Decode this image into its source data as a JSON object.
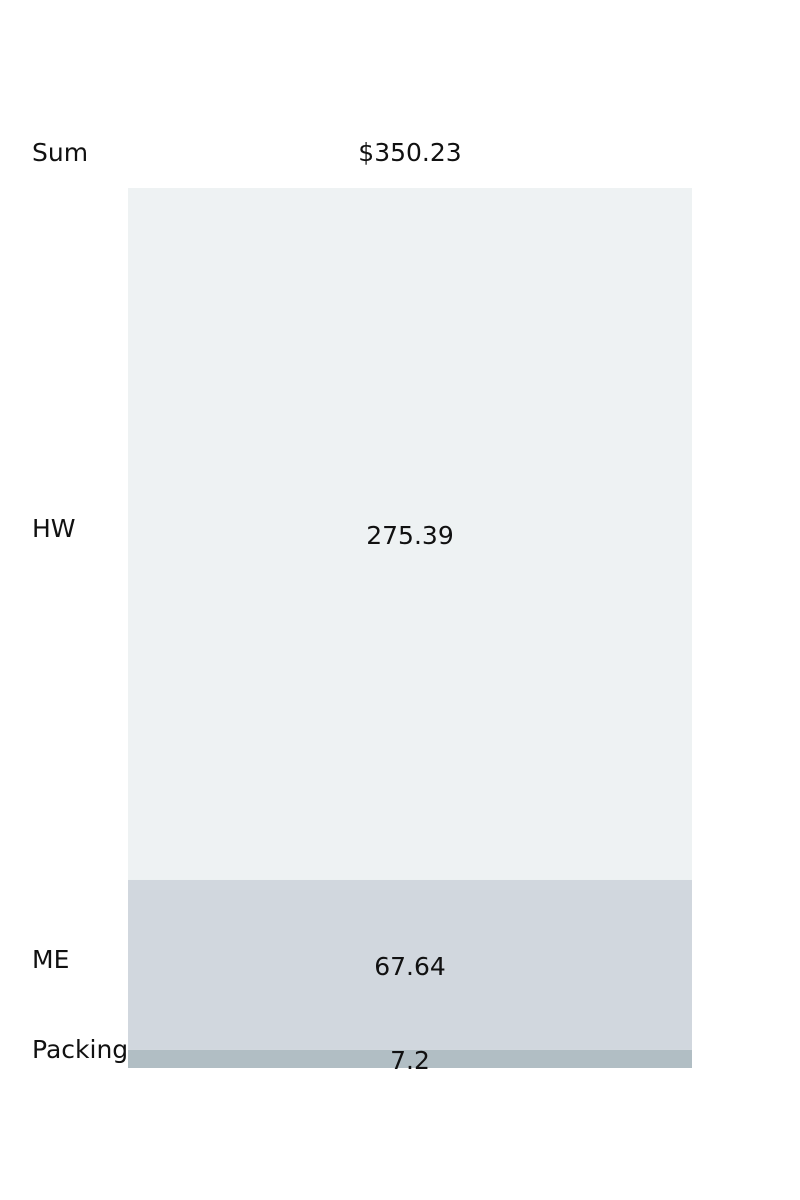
{
  "chart_data": {
    "type": "bar",
    "subtype": "stacked-single-column",
    "total": {
      "label": "Sum",
      "value_text": "$350.23",
      "value": 350.23
    },
    "segments": [
      {
        "name": "HW",
        "value": 275.39,
        "value_text": "275.39",
        "color": "#eef2f3"
      },
      {
        "name": "ME",
        "value": 67.64,
        "value_text": "67.64",
        "color": "#d1d7de"
      },
      {
        "name": "Packing",
        "value": 7.2,
        "value_text": "7.2",
        "color": "#b1bec4"
      }
    ],
    "title": "",
    "xlabel": "",
    "ylabel": "",
    "grid": false
  }
}
